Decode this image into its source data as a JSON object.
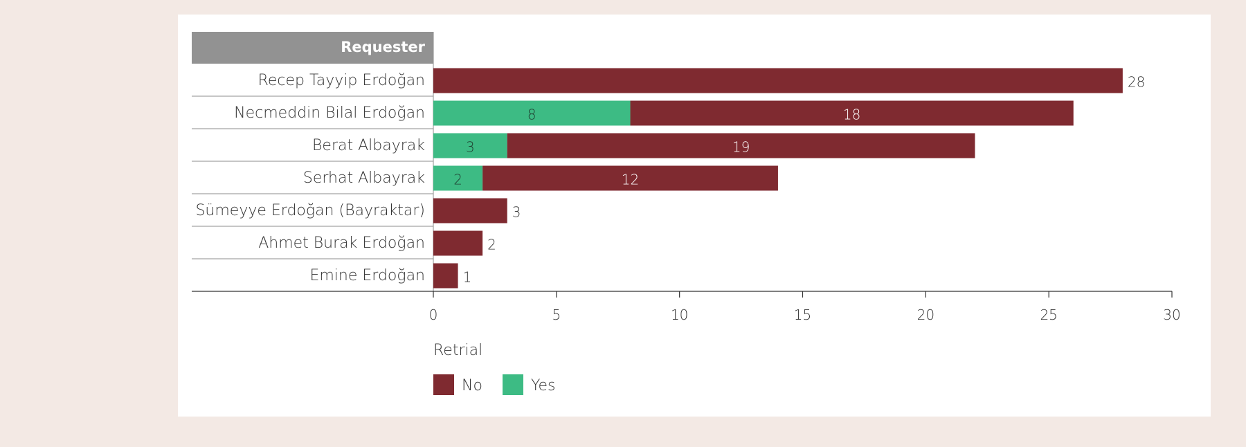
{
  "chart_data": {
    "type": "bar",
    "orientation": "horizontal",
    "stacked": true,
    "row_header": "Requester",
    "categories": [
      "Recep Tayyip Erdoğan",
      "Necmeddin Bilal Erdoğan",
      "Berat Albayrak",
      "Serhat Albayrak",
      "Sümeyye Erdoğan (Bayraktar)",
      "Ahmet Burak Erdoğan",
      "Emine Erdoğan"
    ],
    "series": [
      {
        "name": "Yes",
        "color": "#3dbb84",
        "values": [
          0,
          8,
          3,
          2,
          0,
          0,
          0
        ]
      },
      {
        "name": "No",
        "color": "#7f2a30",
        "values": [
          28,
          18,
          19,
          12,
          3,
          2,
          1
        ]
      }
    ],
    "data_labels": [
      [
        "",
        "8",
        "3",
        "2",
        "",
        "",
        ""
      ],
      [
        "28",
        "18",
        "19",
        "12",
        "3",
        "2",
        "1"
      ]
    ],
    "xlim": [
      0,
      30
    ],
    "x_ticks": [
      0,
      5,
      10,
      15,
      20,
      25,
      30
    ],
    "legend": {
      "title": "Retrial",
      "position": "bottom-left",
      "entries": [
        {
          "label": "No",
          "color": "#7f2a30"
        },
        {
          "label": "Yes",
          "color": "#3dbb84"
        }
      ]
    },
    "header_color": "#929292",
    "grid": false
  }
}
